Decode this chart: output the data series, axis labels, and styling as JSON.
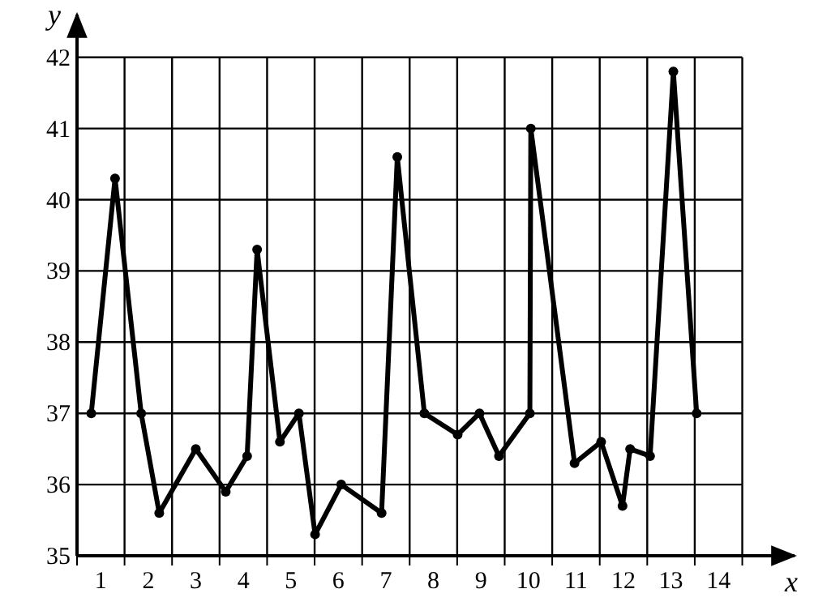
{
  "chart_data": {
    "type": "line",
    "xlabel": "x",
    "ylabel": "y",
    "xlim": [
      0.5,
      15.6
    ],
    "ylim": [
      35,
      42.6
    ],
    "xticks": [
      {
        "value": 0.5,
        "label": null
      },
      1,
      {
        "value": 1.5,
        "label": null
      },
      2,
      {
        "value": 2.5,
        "label": null
      },
      3,
      {
        "value": 3.5,
        "label": null
      },
      4,
      {
        "value": 4.5,
        "label": null
      },
      5,
      {
        "value": 5.5,
        "label": null
      },
      6,
      {
        "value": 6.5,
        "label": null
      },
      7,
      {
        "value": 7.5,
        "label": null
      },
      8,
      {
        "value": 8.5,
        "label": null
      },
      9,
      {
        "value": 9.5,
        "label": null
      },
      10,
      {
        "value": 10.5,
        "label": null
      },
      11,
      {
        "value": 11.5,
        "label": null
      },
      12,
      {
        "value": 12.5,
        "label": null
      },
      13,
      {
        "value": 13.5,
        "label": null
      },
      14,
      {
        "value": 14.5,
        "label": null
      }
    ],
    "yticks": [
      35,
      36,
      37,
      38,
      39,
      40,
      41,
      42
    ],
    "grid": true,
    "marker": "circle",
    "line_style": "solid",
    "series": [
      {
        "color": "#000000",
        "x": [
          0.8,
          1.3,
          1.85,
          2.23,
          3.0,
          3.63,
          4.08,
          4.29,
          4.77,
          5.17,
          5.51,
          6.06,
          6.91,
          7.24,
          7.81,
          8.51,
          8.97,
          9.38,
          10.03,
          10.05,
          10.97,
          11.53,
          11.98,
          12.14,
          12.56,
          13.05,
          13.54
        ],
        "values": [
          37,
          40.3,
          37,
          35.6,
          36.5,
          35.9,
          36.4,
          39.3,
          36.6,
          37,
          35.3,
          36,
          35.6,
          40.6,
          37,
          36.7,
          37,
          36.4,
          37,
          41,
          36.3,
          36.6,
          35.7,
          36.5,
          36.4,
          41.8,
          37
        ]
      }
    ]
  }
}
